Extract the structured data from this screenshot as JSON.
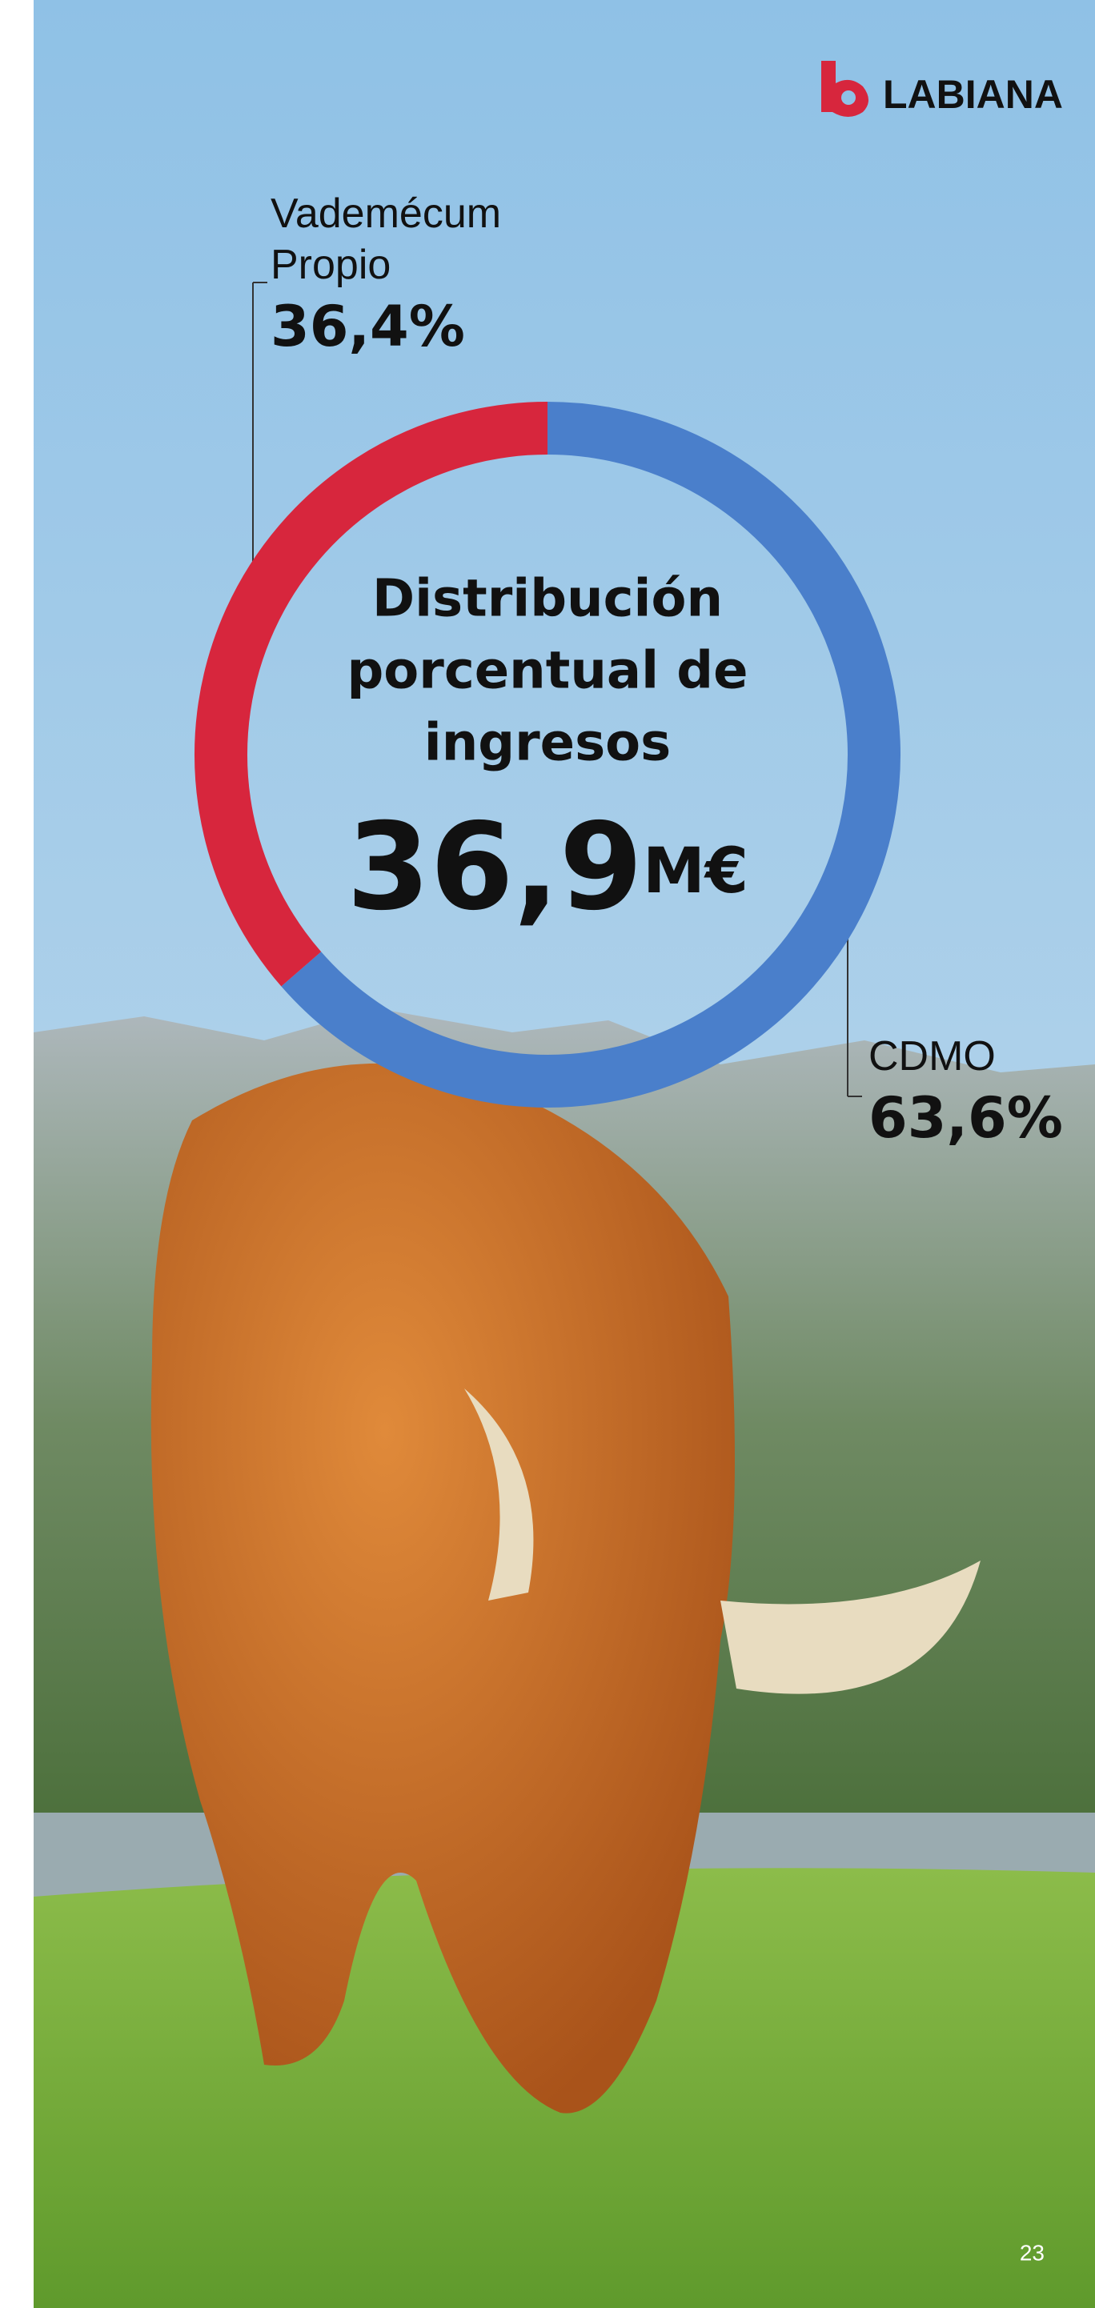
{
  "brand": "LABIANA",
  "page_number": "23",
  "chart_data": {
    "type": "donut",
    "title": [
      "Distribución",
      "porcentual de",
      "ingresos"
    ],
    "center_value": "36,9",
    "center_unit": "M€",
    "categories": [
      "Vademécum Propio",
      "CDMO"
    ],
    "values": [
      36.4,
      63.6
    ],
    "value_labels": [
      "36,4%",
      "63,6%"
    ],
    "colors": [
      "#d7263d",
      "#4a7fcb"
    ]
  }
}
